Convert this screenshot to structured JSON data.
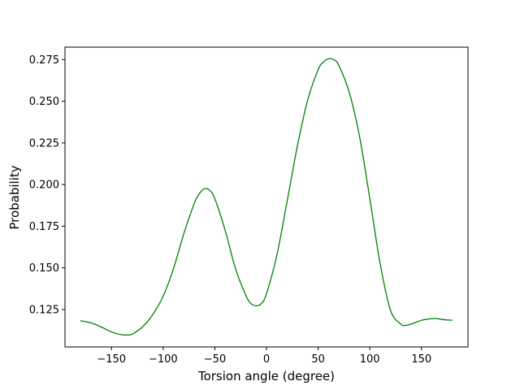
{
  "chart_data": {
    "type": "line",
    "title": "",
    "xlabel": "Torsion angle (degree)",
    "ylabel": "Probability",
    "xlim": [
      -195,
      195
    ],
    "ylim": [
      0.1025,
      0.2825
    ],
    "x_ticks": [
      -150,
      -100,
      -50,
      0,
      50,
      100,
      150
    ],
    "x_tick_labels": [
      "−150",
      "−100",
      "−50",
      "0",
      "50",
      "100",
      "150"
    ],
    "y_ticks": [
      0.125,
      0.15,
      0.175,
      0.2,
      0.225,
      0.25,
      0.275
    ],
    "y_tick_labels": [
      "0.125",
      "0.150",
      "0.175",
      "0.200",
      "0.225",
      "0.250",
      "0.275"
    ],
    "grid": false,
    "legend": "none",
    "series": [
      {
        "color": "#008000",
        "x": [
          -180,
          -170,
          -160,
          -150,
          -140,
          -135,
          -130,
          -120,
          -110,
          -100,
          -90,
          -80,
          -70,
          -65,
          -60,
          -55,
          -50,
          -40,
          -30,
          -20,
          -15,
          -10,
          -5,
          0,
          10,
          20,
          30,
          40,
          50,
          55,
          60,
          65,
          70,
          80,
          90,
          100,
          110,
          120,
          130,
          135,
          140,
          150,
          160,
          165,
          170,
          180
        ],
        "y": [
          0.1182,
          0.117,
          0.1145,
          0.1115,
          0.1098,
          0.1097,
          0.1102,
          0.1145,
          0.122,
          0.133,
          0.1495,
          0.1705,
          0.1885,
          0.1945,
          0.1975,
          0.1965,
          0.1915,
          0.1725,
          0.1495,
          0.1335,
          0.1285,
          0.1272,
          0.1285,
          0.1345,
          0.1575,
          0.19,
          0.2235,
          0.251,
          0.269,
          0.2735,
          0.2755,
          0.275,
          0.2715,
          0.2555,
          0.229,
          0.1915,
          0.1525,
          0.1245,
          0.1162,
          0.1155,
          0.1162,
          0.1185,
          0.1195,
          0.1195,
          0.119,
          0.1185
        ]
      }
    ]
  }
}
